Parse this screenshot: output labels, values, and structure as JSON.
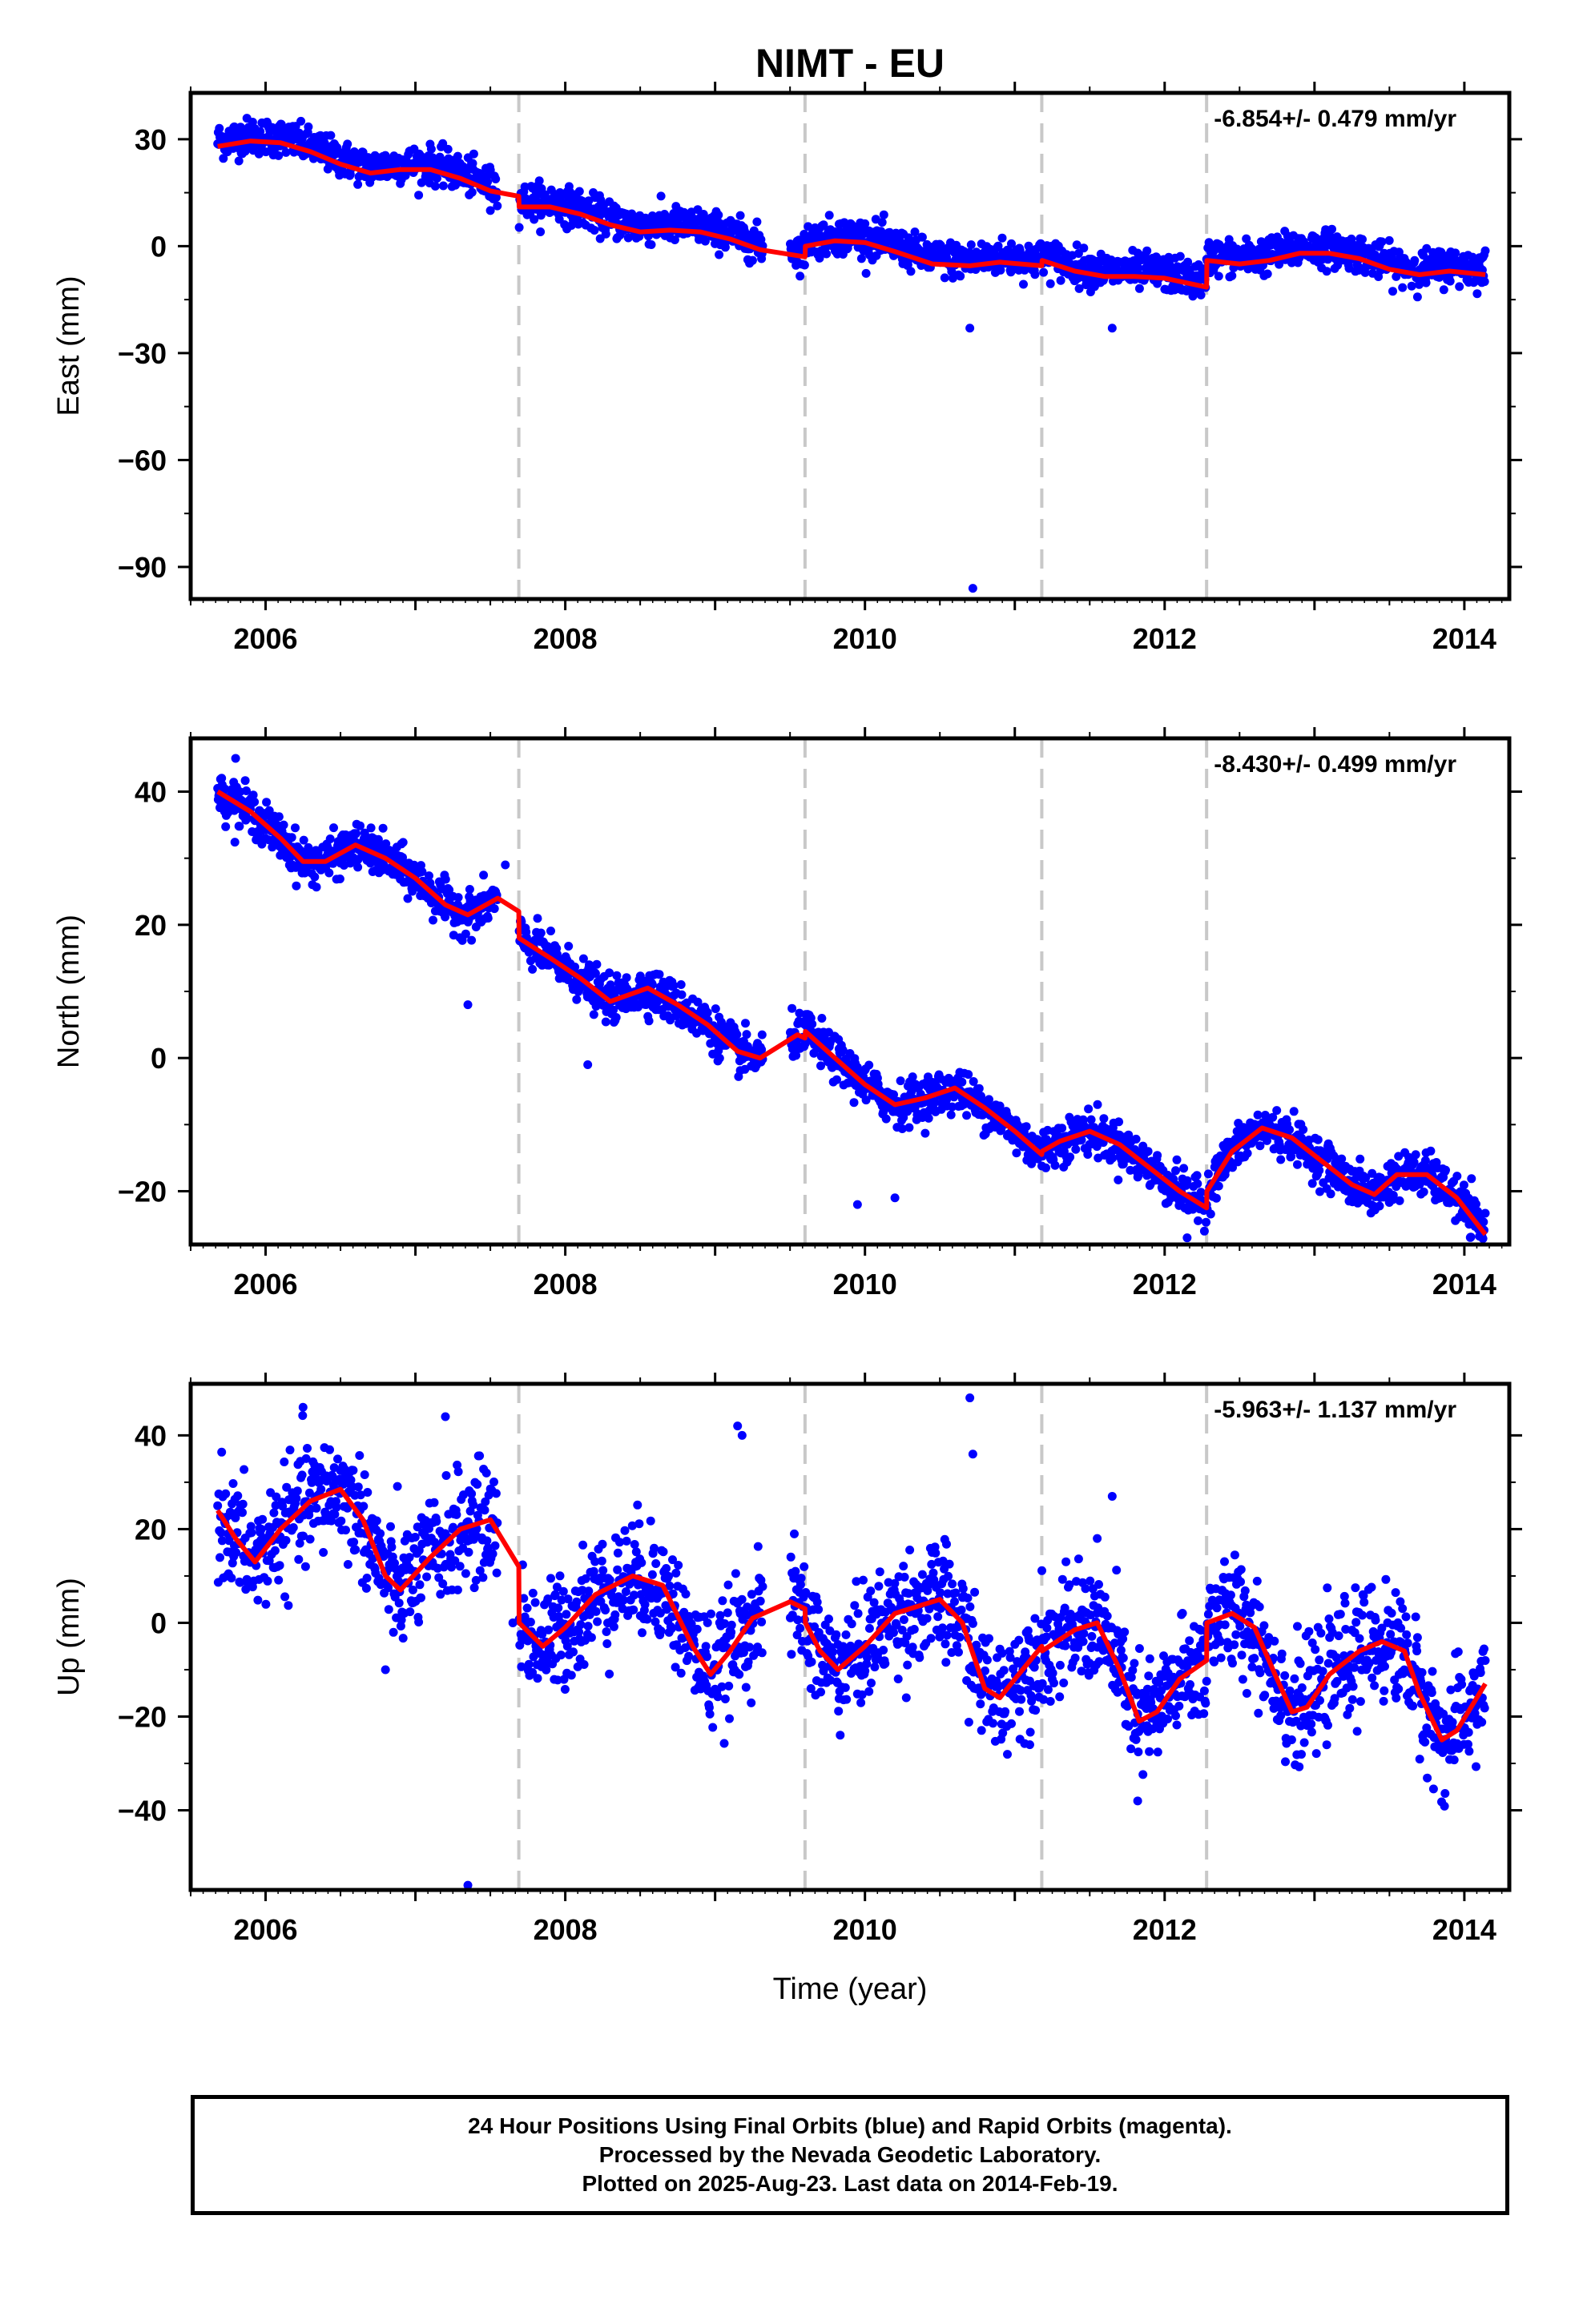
{
  "colors": {
    "points": "#0000ff",
    "fit": "#ff0000",
    "steps": "#c8c8c8"
  },
  "chart_data": [
    {
      "type": "scatter",
      "title": "NIMT - EU",
      "xlabel": "",
      "ylabel": "East (mm)",
      "xlim": [
        2005.5,
        2014.3
      ],
      "ylim": [
        -99,
        43
      ],
      "yticks": [
        30,
        0,
        -30,
        -60,
        -90
      ],
      "xticks": [
        2006,
        2008,
        2010,
        2012,
        2014
      ],
      "annotation": "-6.854+/- 0.479 mm/yr",
      "steps": [
        2007.69,
        2009.6,
        2011.18,
        2012.28
      ],
      "fit_knots": [
        [
          2005.68,
          28
        ],
        [
          2005.9,
          29.5
        ],
        [
          2006.1,
          29
        ],
        [
          2006.3,
          26.5
        ],
        [
          2006.5,
          23
        ],
        [
          2006.7,
          20.5
        ],
        [
          2006.9,
          21.5
        ],
        [
          2007.1,
          21.5
        ],
        [
          2007.3,
          19
        ],
        [
          2007.5,
          15.5
        ],
        [
          2007.69,
          14
        ],
        [
          2007.692,
          11
        ],
        [
          2007.9,
          11
        ],
        [
          2008.1,
          9
        ],
        [
          2008.3,
          6
        ],
        [
          2008.5,
          4
        ],
        [
          2008.7,
          4.5
        ],
        [
          2008.9,
          4
        ],
        [
          2009.1,
          2
        ],
        [
          2009.3,
          -1
        ],
        [
          2009.6,
          -3
        ],
        [
          2009.602,
          0
        ],
        [
          2009.8,
          1.5
        ],
        [
          2010.0,
          1
        ],
        [
          2010.2,
          -1.5
        ],
        [
          2010.45,
          -5
        ],
        [
          2010.7,
          -5.5
        ],
        [
          2010.9,
          -4.5
        ],
        [
          2011.18,
          -5.5
        ],
        [
          2011.182,
          -4
        ],
        [
          2011.4,
          -7
        ],
        [
          2011.6,
          -8.5
        ],
        [
          2011.8,
          -8.5
        ],
        [
          2012.0,
          -9
        ],
        [
          2012.28,
          -11.5
        ],
        [
          2012.282,
          -4
        ],
        [
          2012.5,
          -5
        ],
        [
          2012.7,
          -4
        ],
        [
          2012.9,
          -2
        ],
        [
          2013.1,
          -2
        ],
        [
          2013.3,
          -3.5
        ],
        [
          2013.5,
          -6.5
        ],
        [
          2013.7,
          -8
        ],
        [
          2013.9,
          -7
        ],
        [
          2014.14,
          -8
        ]
      ],
      "scatter_sd": 2.5,
      "scatter_offset": 1.5,
      "outliers": [
        [
          2010.7,
          -23
        ],
        [
          2010.72,
          -96
        ],
        [
          2011.65,
          -23
        ],
        [
          2007.5,
          10
        ],
        [
          2009.25,
          -4
        ]
      ]
    },
    {
      "type": "scatter",
      "title": "",
      "xlabel": "",
      "ylabel": "North (mm)",
      "xlim": [
        2005.5,
        2014.3
      ],
      "ylim": [
        -28,
        48
      ],
      "yticks": [
        40,
        20,
        0,
        -20
      ],
      "xticks": [
        2006,
        2008,
        2010,
        2012,
        2014
      ],
      "annotation": "-8.430+/- 0.499 mm/yr",
      "steps": [
        2007.69,
        2009.6,
        2011.18,
        2012.28
      ],
      "fit_knots": [
        [
          2005.68,
          40
        ],
        [
          2005.9,
          37
        ],
        [
          2006.1,
          33
        ],
        [
          2006.25,
          29.5
        ],
        [
          2006.4,
          29.5
        ],
        [
          2006.6,
          32
        ],
        [
          2006.8,
          30
        ],
        [
          2007.0,
          27
        ],
        [
          2007.2,
          23
        ],
        [
          2007.35,
          21.5
        ],
        [
          2007.55,
          24
        ],
        [
          2007.69,
          22
        ],
        [
          2007.692,
          18
        ],
        [
          2007.9,
          15
        ],
        [
          2008.1,
          12
        ],
        [
          2008.3,
          8.5
        ],
        [
          2008.55,
          10.5
        ],
        [
          2008.75,
          8
        ],
        [
          2008.95,
          5
        ],
        [
          2009.15,
          1
        ],
        [
          2009.3,
          0
        ],
        [
          2009.55,
          3.5
        ],
        [
          2009.6,
          3
        ],
        [
          2009.602,
          4
        ],
        [
          2009.8,
          0
        ],
        [
          2010.0,
          -4
        ],
        [
          2010.2,
          -7
        ],
        [
          2010.4,
          -6
        ],
        [
          2010.6,
          -4.5
        ],
        [
          2010.8,
          -7.5
        ],
        [
          2011.0,
          -11
        ],
        [
          2011.18,
          -14.5
        ],
        [
          2011.182,
          -14
        ],
        [
          2011.3,
          -12.5
        ],
        [
          2011.5,
          -11
        ],
        [
          2011.7,
          -13
        ],
        [
          2011.9,
          -16.5
        ],
        [
          2012.1,
          -20
        ],
        [
          2012.28,
          -22.5
        ],
        [
          2012.282,
          -20
        ],
        [
          2012.45,
          -14
        ],
        [
          2012.65,
          -10.5
        ],
        [
          2012.85,
          -12
        ],
        [
          2013.05,
          -15.5
        ],
        [
          2013.25,
          -19
        ],
        [
          2013.4,
          -20.5
        ],
        [
          2013.55,
          -17.5
        ],
        [
          2013.75,
          -17.5
        ],
        [
          2013.95,
          -21
        ],
        [
          2014.14,
          -26.5
        ]
      ],
      "scatter_sd": 1.6,
      "scatter_offset": 0,
      "outliers": [
        [
          2007.35,
          8
        ],
        [
          2008.15,
          -1
        ],
        [
          2010.2,
          -21
        ],
        [
          2012.15,
          -27
        ],
        [
          2005.8,
          45
        ],
        [
          2009.95,
          -22
        ],
        [
          2007.6,
          29
        ]
      ]
    },
    {
      "type": "scatter",
      "title": "",
      "xlabel": "Time (year)",
      "ylabel": "Up (mm)",
      "xlim": [
        2005.5,
        2014.3
      ],
      "ylim": [
        -57,
        51
      ],
      "yticks": [
        40,
        20,
        0,
        -20,
        -40
      ],
      "xticks": [
        2006,
        2008,
        2010,
        2012,
        2014
      ],
      "annotation": "-5.963+/- 1.137 mm/yr",
      "steps": [
        2007.69,
        2009.6,
        2011.18,
        2012.28
      ],
      "fit_knots": [
        [
          2005.68,
          24
        ],
        [
          2005.8,
          18
        ],
        [
          2005.93,
          13
        ],
        [
          2006.1,
          20
        ],
        [
          2006.3,
          26
        ],
        [
          2006.5,
          28.5
        ],
        [
          2006.65,
          22
        ],
        [
          2006.8,
          10
        ],
        [
          2006.9,
          7
        ],
        [
          2007.1,
          14
        ],
        [
          2007.3,
          20
        ],
        [
          2007.5,
          22
        ],
        [
          2007.69,
          12
        ],
        [
          2007.692,
          0
        ],
        [
          2007.85,
          -5
        ],
        [
          2008.0,
          -1
        ],
        [
          2008.2,
          6
        ],
        [
          2008.45,
          10
        ],
        [
          2008.65,
          8
        ],
        [
          2008.85,
          -5
        ],
        [
          2008.97,
          -11
        ],
        [
          2009.1,
          -6
        ],
        [
          2009.25,
          1
        ],
        [
          2009.5,
          4.5
        ],
        [
          2009.6,
          3
        ],
        [
          2009.602,
          0
        ],
        [
          2009.7,
          -6
        ],
        [
          2009.82,
          -10
        ],
        [
          2010.0,
          -5
        ],
        [
          2010.2,
          2
        ],
        [
          2010.5,
          5
        ],
        [
          2010.65,
          0
        ],
        [
          2010.8,
          -14
        ],
        [
          2010.9,
          -16
        ],
        [
          2011.0,
          -12
        ],
        [
          2011.18,
          -5
        ],
        [
          2011.182,
          -6
        ],
        [
          2011.4,
          -1.5
        ],
        [
          2011.55,
          0
        ],
        [
          2011.7,
          -10
        ],
        [
          2011.83,
          -21
        ],
        [
          2011.95,
          -19
        ],
        [
          2012.1,
          -12
        ],
        [
          2012.28,
          -8
        ],
        [
          2012.282,
          0
        ],
        [
          2012.45,
          2
        ],
        [
          2012.6,
          -1
        ],
        [
          2012.75,
          -12
        ],
        [
          2012.85,
          -19
        ],
        [
          2012.95,
          -18
        ],
        [
          2013.1,
          -11
        ],
        [
          2013.3,
          -6
        ],
        [
          2013.45,
          -4
        ],
        [
          2013.6,
          -6
        ],
        [
          2013.7,
          -15
        ],
        [
          2013.85,
          -25
        ],
        [
          2013.95,
          -23
        ],
        [
          2014.14,
          -13
        ]
      ],
      "scatter_sd": 6,
      "scatter_offset": 0,
      "outliers": [
        [
          2007.35,
          -56
        ],
        [
          2010.7,
          48
        ],
        [
          2010.72,
          36
        ],
        [
          2009.15,
          42
        ],
        [
          2009.18,
          40
        ],
        [
          2007.2,
          44
        ],
        [
          2006.25,
          46
        ],
        [
          2011.65,
          27
        ],
        [
          2011.55,
          18
        ],
        [
          2011.82,
          -38
        ],
        [
          2011.1,
          -26
        ],
        [
          2007.65,
          0
        ],
        [
          2006.8,
          -10
        ]
      ]
    }
  ],
  "footer": {
    "line1": "24 Hour Positions Using Final Orbits (blue) and Rapid Orbits (magenta).",
    "line2": "Processed by the Nevada Geodetic Laboratory.",
    "line3": "Plotted on 2025-Aug-23. Last data on 2014-Feb-19."
  }
}
